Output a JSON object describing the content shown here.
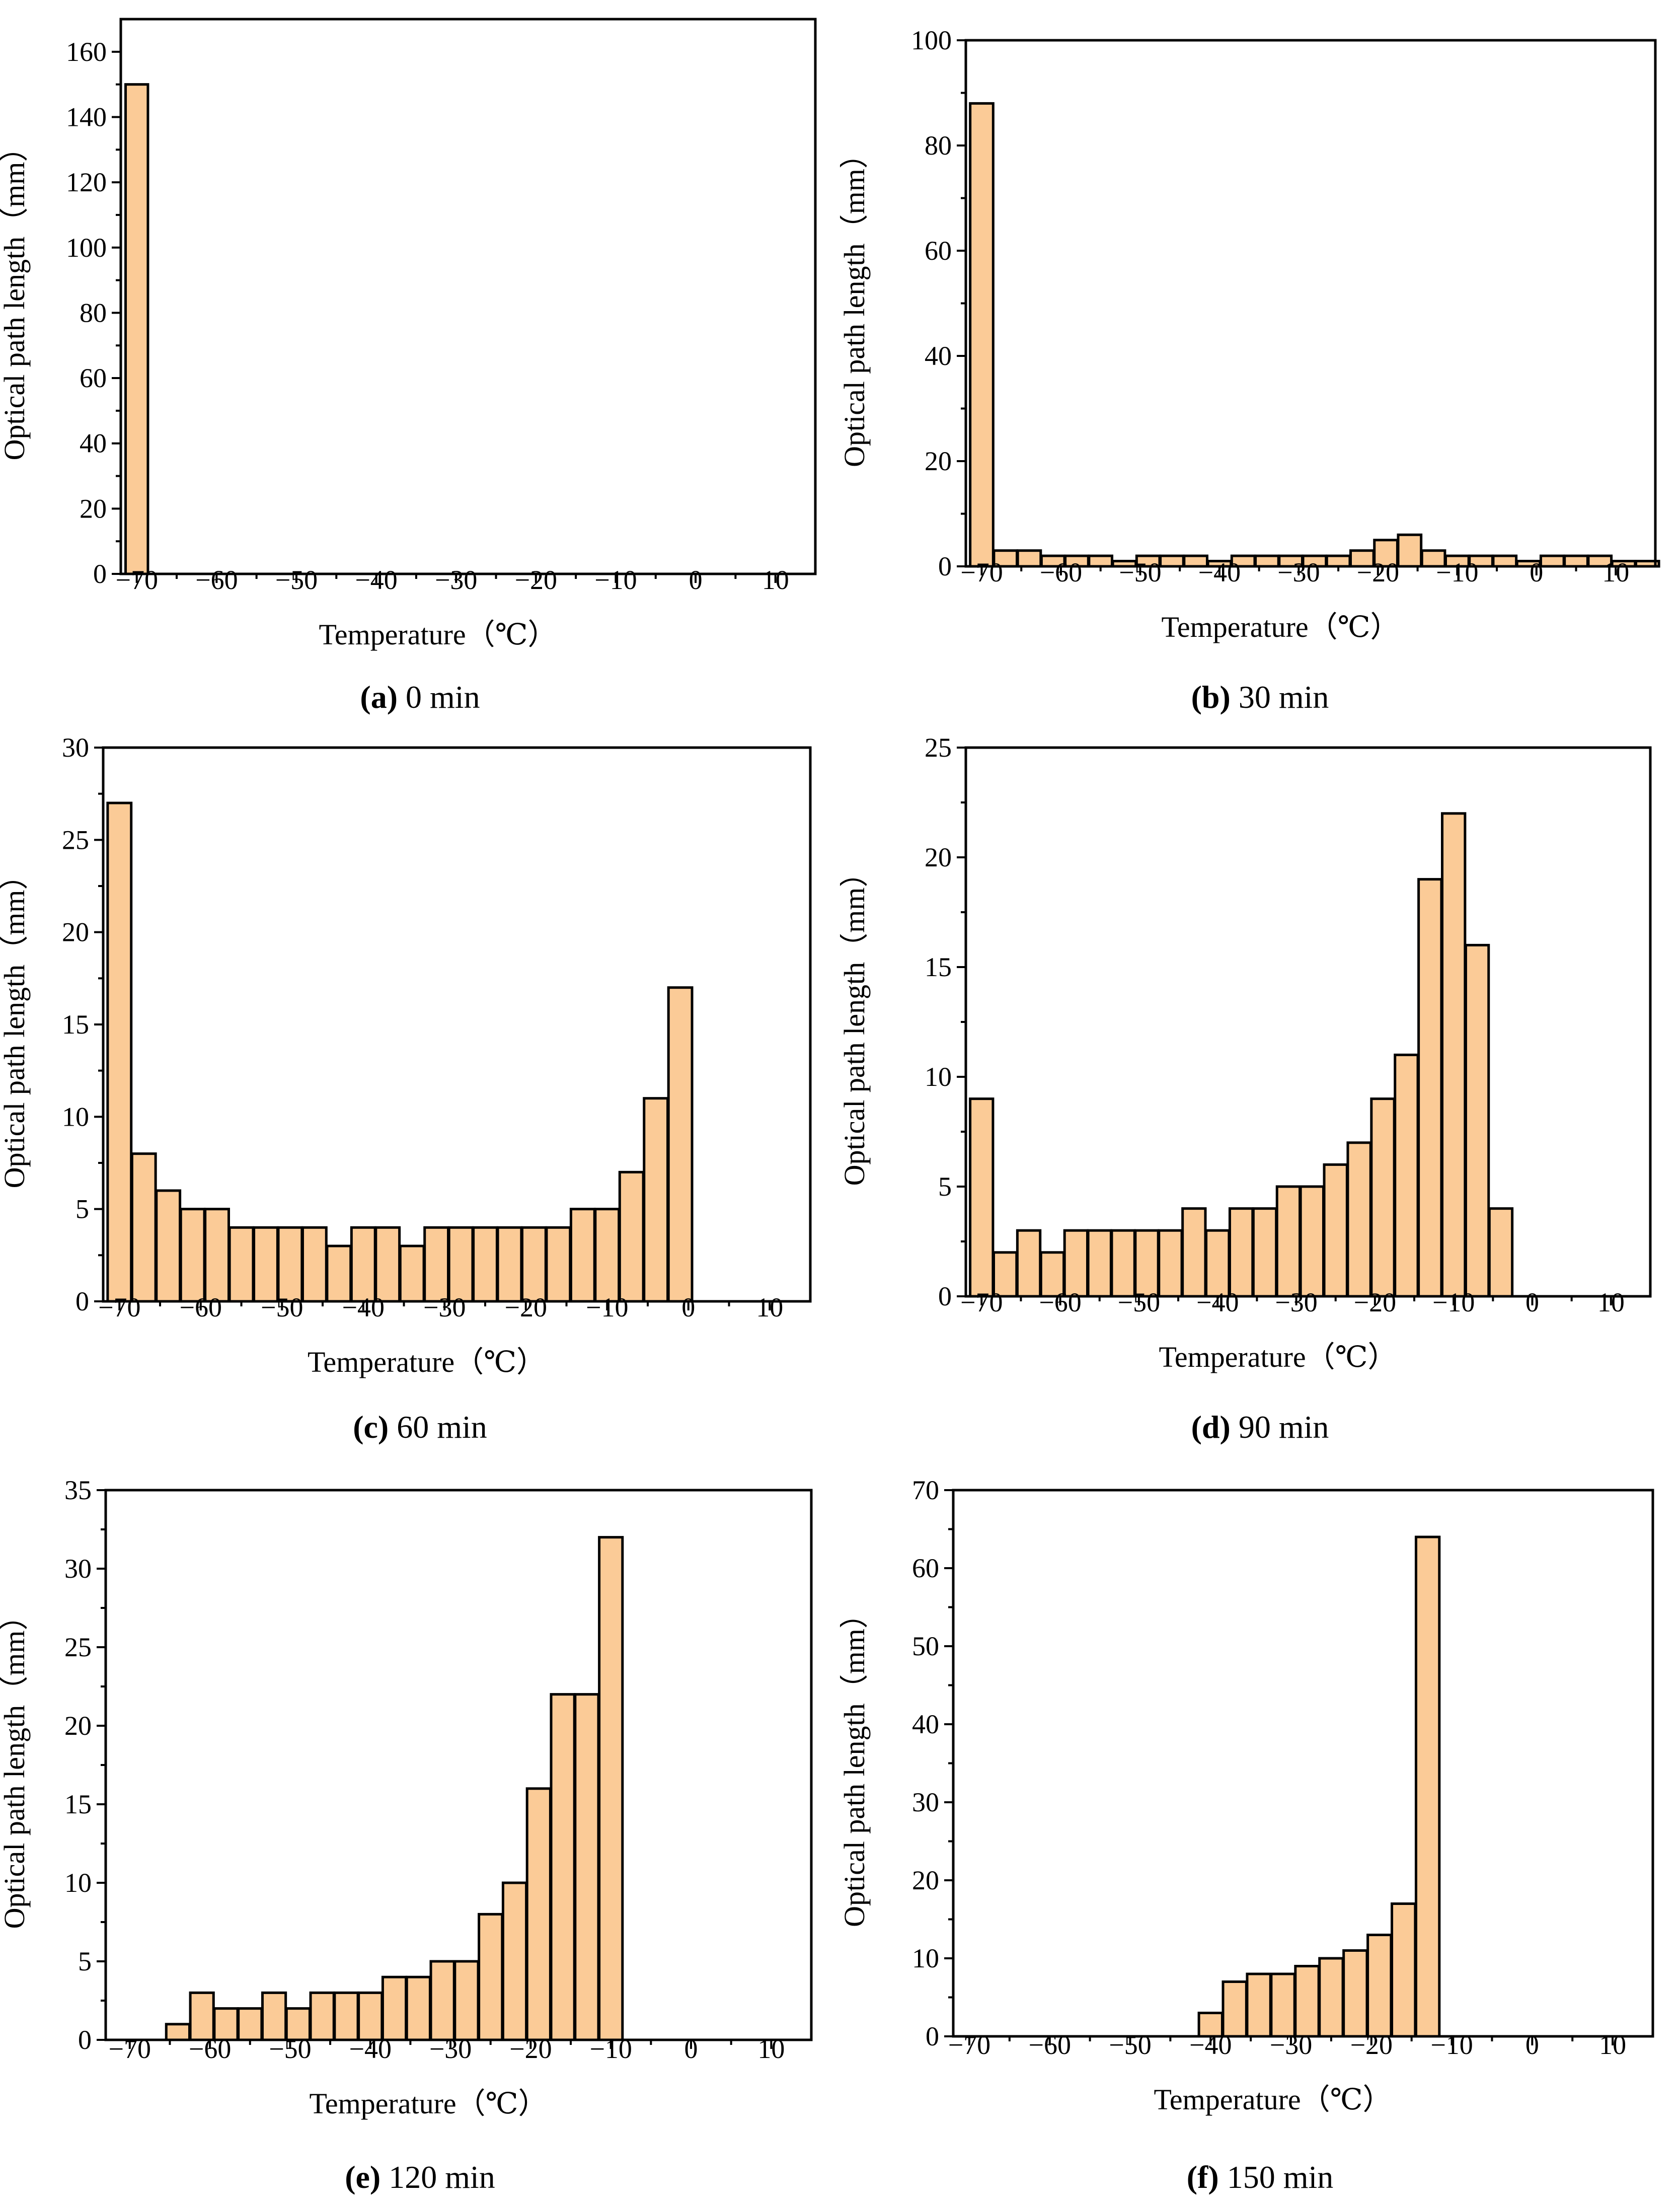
{
  "figure": {
    "ylabel": "Optical path length（mm）",
    "xlabel": "Temperature（℃）",
    "bar_color": "#fbcb97"
  },
  "chart_data": [
    {
      "type": "bar",
      "caption_letter": "(a)",
      "caption_rest": " 0 min",
      "xlabel": "Temperature（℃）",
      "ylabel": "Optical path length（mm）",
      "xlim": [
        -72,
        15
      ],
      "ylim": [
        0,
        170
      ],
      "xticks": [
        -70,
        -60,
        -50,
        -40,
        -30,
        -20,
        -10,
        0,
        10
      ],
      "yticks": [
        0,
        20,
        40,
        60,
        80,
        100,
        120,
        140,
        160
      ],
      "bin_width": 2.8,
      "x": [
        -70
      ],
      "values": [
        150
      ]
    },
    {
      "type": "bar",
      "caption_letter": "(b)",
      "caption_rest": " 30 min",
      "xlabel": "Temperature（℃）",
      "ylabel": "Optical path length（mm）",
      "xlim": [
        -72,
        15
      ],
      "ylim": [
        0,
        100
      ],
      "xticks": [
        -70,
        -60,
        -50,
        -40,
        -30,
        -20,
        -10,
        0,
        10
      ],
      "yticks": [
        0,
        20,
        40,
        60,
        80,
        100
      ],
      "bin_width": 2.9,
      "x": [
        -70,
        -67,
        -64,
        -61,
        -58,
        -55,
        -52,
        -49,
        -46,
        -43,
        -40,
        -37,
        -34,
        -31,
        -28,
        -25,
        -22,
        -19,
        -16,
        -13,
        -10,
        -7,
        -4,
        -1,
        2,
        5,
        8,
        11,
        14
      ],
      "values": [
        88,
        3,
        3,
        2,
        2,
        2,
        1,
        2,
        2,
        2,
        1,
        2,
        2,
        2,
        2,
        2,
        3,
        5,
        6,
        3,
        2,
        2,
        2,
        1,
        2,
        2,
        2,
        1,
        1
      ]
    },
    {
      "type": "bar",
      "caption_letter": "(c)",
      "caption_rest": " 60 min",
      "xlabel": "Temperature（℃）",
      "ylabel": "Optical path length（mm）",
      "xlim": [
        -72,
        15
      ],
      "ylim": [
        0,
        30
      ],
      "xticks": [
        -70,
        -60,
        -50,
        -40,
        -30,
        -20,
        -10,
        0,
        10
      ],
      "yticks": [
        0,
        5,
        10,
        15,
        20,
        25,
        30
      ],
      "bin_width": 2.9,
      "x": [
        -70,
        -67,
        -64,
        -61,
        -58,
        -55,
        -52,
        -49,
        -46,
        -43,
        -40,
        -37,
        -34,
        -31,
        -28,
        -25,
        -22,
        -19,
        -16,
        -13,
        -10,
        -7,
        -4,
        -1
      ],
      "values": [
        27,
        8,
        6,
        5,
        5,
        4,
        4,
        4,
        4,
        3,
        4,
        4,
        3,
        4,
        4,
        4,
        4,
        4,
        4,
        5,
        5,
        7,
        11,
        17
      ]
    },
    {
      "type": "bar",
      "caption_letter": "(d)",
      "caption_rest": " 90 min",
      "xlabel": "Temperature（℃）",
      "ylabel": "Optical path length（mm）",
      "xlim": [
        -72,
        15
      ],
      "ylim": [
        0,
        25
      ],
      "xticks": [
        -70,
        -60,
        -50,
        -40,
        -30,
        -20,
        -10,
        0,
        10
      ],
      "yticks": [
        0,
        5,
        10,
        15,
        20,
        25
      ],
      "bin_width": 2.9,
      "x": [
        -70,
        -67,
        -64,
        -61,
        -58,
        -55,
        -52,
        -49,
        -46,
        -43,
        -40,
        -37,
        -34,
        -31,
        -28,
        -25,
        -22,
        -19,
        -16,
        -13,
        -10,
        -7,
        -4
      ],
      "values": [
        9,
        2,
        3,
        2,
        3,
        3,
        3,
        3,
        3,
        4,
        3,
        4,
        4,
        5,
        5,
        6,
        7,
        9,
        11,
        19,
        22,
        16,
        4
      ]
    },
    {
      "type": "bar",
      "caption_letter": "(e)",
      "caption_rest": " 120 min",
      "xlabel": "Temperature（℃）",
      "ylabel": "Optical path length（mm）",
      "xlim": [
        -73,
        15
      ],
      "ylim": [
        0,
        35
      ],
      "xticks": [
        -70,
        -60,
        -50,
        -40,
        -30,
        -20,
        -10,
        0,
        10
      ],
      "yticks": [
        0,
        5,
        10,
        15,
        20,
        25,
        30,
        35
      ],
      "bin_width": 2.9,
      "x": [
        -64,
        -61,
        -58,
        -55,
        -52,
        -49,
        -46,
        -43,
        -40,
        -37,
        -34,
        -31,
        -28,
        -25,
        -22,
        -19,
        -16,
        -13,
        -10
      ],
      "values": [
        1,
        3,
        2,
        2,
        3,
        2,
        3,
        3,
        3,
        4,
        4,
        5,
        5,
        8,
        10,
        16,
        22,
        22,
        32
      ]
    },
    {
      "type": "bar",
      "caption_letter": "(f)",
      "caption_rest": " 150 min",
      "xlabel": "Temperature（℃）",
      "ylabel": "Optical path length（mm）",
      "xlim": [
        -72,
        15
      ],
      "ylim": [
        0,
        70
      ],
      "xticks": [
        -70,
        -60,
        -50,
        -40,
        -30,
        -20,
        -10,
        0,
        10
      ],
      "yticks": [
        0,
        10,
        20,
        30,
        40,
        50,
        60,
        70
      ],
      "bin_width": 2.9,
      "x": [
        -40,
        -37,
        -34,
        -31,
        -28,
        -25,
        -22,
        -19,
        -16,
        -13
      ],
      "values": [
        3,
        7,
        8,
        8,
        9,
        10,
        11,
        13,
        17,
        64
      ]
    }
  ]
}
